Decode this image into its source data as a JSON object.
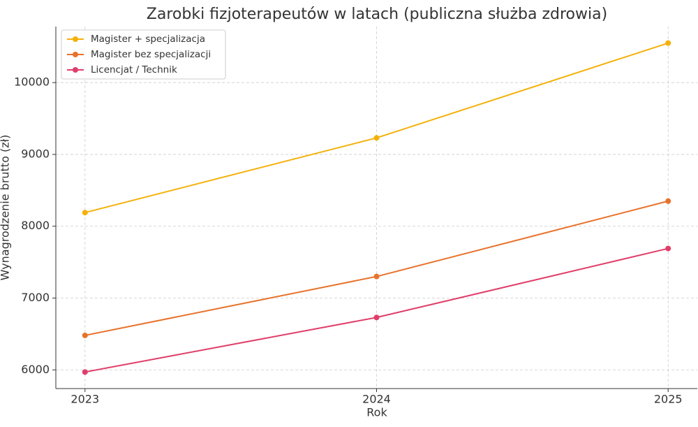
{
  "chart_data": {
    "type": "line",
    "title": "Zarobki fizjoterapeutów w latach (publiczna służba zdrowia)",
    "x_label": "Rok",
    "y_label": "Wynagrodzenie brutto (zł)",
    "x": [
      2023,
      2024,
      2025
    ],
    "series": [
      {
        "name": "Magister + specjalizacja",
        "color": "#f4b10b",
        "values": [
          8190,
          9230,
          10550
        ]
      },
      {
        "name": "Magister bez specjalizacji",
        "color": "#e8722c",
        "values": [
          6480,
          7300,
          8350
        ]
      },
      {
        "name": "Licencjat / Technik",
        "color": "#e03e6a",
        "values": [
          5970,
          6730,
          7690
        ]
      }
    ],
    "xlim": [
      2022.9,
      2025.1
    ],
    "xticks": [
      2023,
      2024,
      2025
    ],
    "ylim": [
      5740,
      10780
    ],
    "yticks": [
      6000,
      7000,
      8000,
      9000,
      10000
    ],
    "grid": true,
    "legend": "upper-left"
  }
}
